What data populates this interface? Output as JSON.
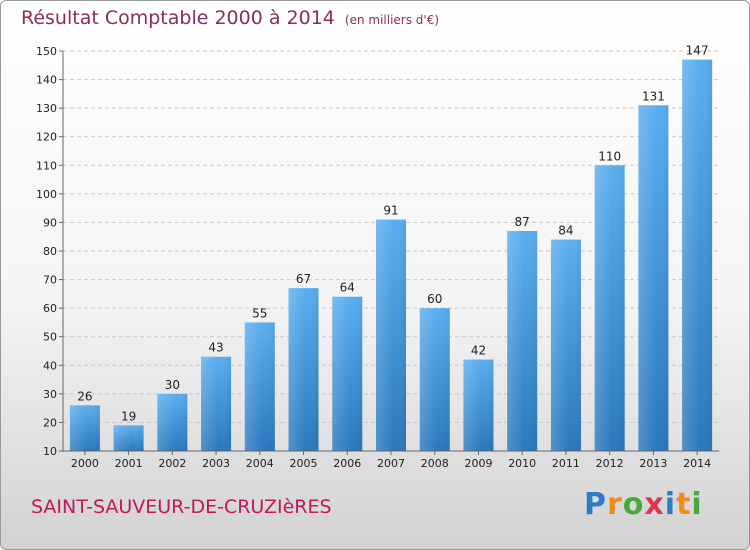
{
  "header": {
    "title": "Résultat Comptable 2000 à 2014",
    "unit": "(en milliers d'€)"
  },
  "footer": {
    "city": "SAINT-SAUVEUR-DE-CRUZIèRES",
    "logo_text": "Proxiti",
    "logo_colors": [
      "#2e7cc4",
      "#f08c1e",
      "#4aa83c",
      "#e0364e",
      "#2e7cc4",
      "#f08c1e",
      "#4aa83c"
    ]
  },
  "chart_data": {
    "type": "bar",
    "title": "Résultat Comptable 2000 à 2014",
    "categories": [
      "2000",
      "2001",
      "2002",
      "2003",
      "2004",
      "2005",
      "2006",
      "2007",
      "2008",
      "2009",
      "2010",
      "2011",
      "2012",
      "2013",
      "2014"
    ],
    "values": [
      26,
      19,
      30,
      43,
      55,
      67,
      64,
      91,
      60,
      42,
      87,
      84,
      110,
      131,
      147
    ],
    "ylim": [
      10,
      150
    ],
    "yticks": [
      10,
      20,
      30,
      40,
      50,
      60,
      70,
      80,
      90,
      100,
      110,
      120,
      130,
      140,
      150
    ],
    "grid": true,
    "bar_color": "#3a8fd6",
    "xlabel": "",
    "ylabel": ""
  }
}
